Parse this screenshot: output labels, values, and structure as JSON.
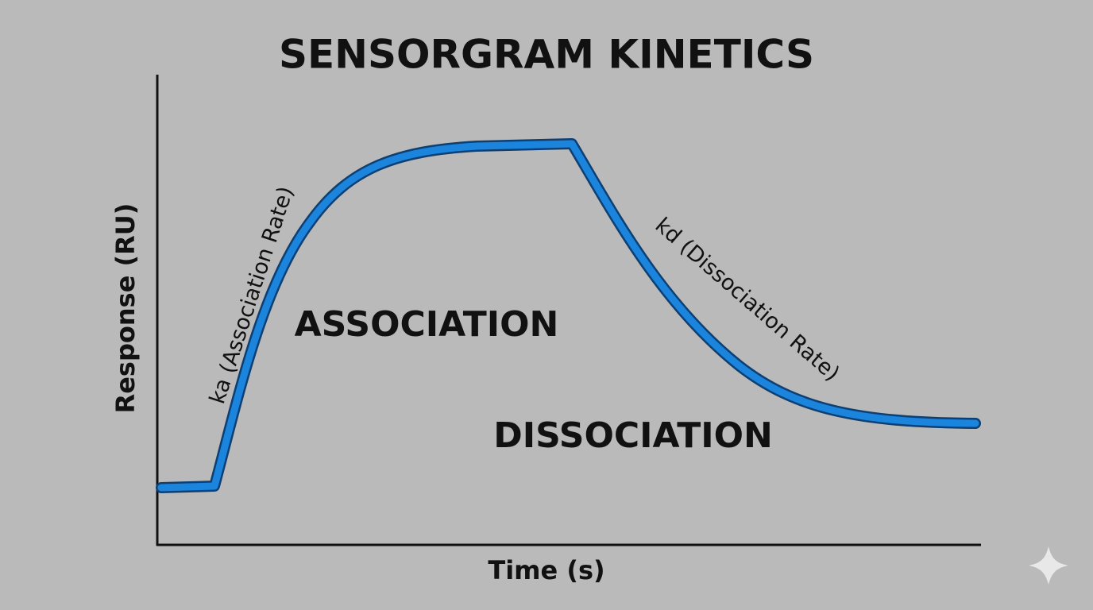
{
  "title": "SENSORGRAM KINETICS",
  "axes": {
    "y_label": "Response (RU)",
    "x_label": "Time (s)"
  },
  "regions": {
    "association": "ASSOCIATION",
    "dissociation": "DISSOCIATION"
  },
  "curve_labels": {
    "association_rate": "ka (Association Rate)",
    "dissociation_rate": "kd (Dissociation Rate)"
  }
}
